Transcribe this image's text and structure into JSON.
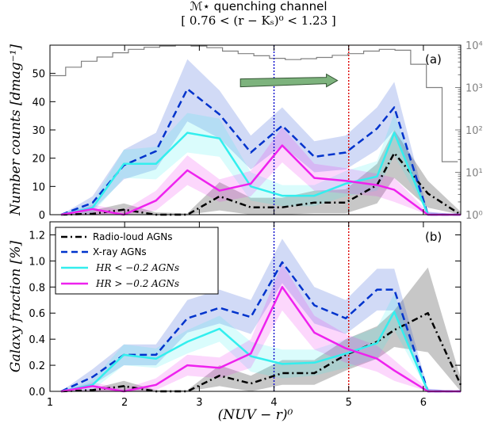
{
  "chart_data": {
    "type": "line",
    "title": "ℳ⋆ quenching channel",
    "subtitle": "[ 0.76 < (r − Kₛ)⁰ < 1.23 ]",
    "xlabel": "(NUV − r)⁰",
    "xlim": [
      1,
      6.5
    ],
    "x_ticks": [
      "1",
      "2",
      "3",
      "4",
      "5",
      "6"
    ],
    "x": [
      1.15,
      1.57,
      1.99,
      2.42,
      2.84,
      3.27,
      3.69,
      4.11,
      4.54,
      4.96,
      5.38,
      5.61,
      6.06,
      6.5
    ],
    "vlines": [
      {
        "x": 4.0,
        "color": "#0000cc"
      },
      {
        "x": 5.0,
        "color": "#dd0000"
      }
    ],
    "legend": {
      "position": "top-left of panel b",
      "entries": [
        "Radio-loud AGNs",
        "X-ray AGNs",
        "HR < −0.2 AGNs",
        "HR > −0.2 AGNs"
      ]
    },
    "panels": [
      {
        "label": "(a)",
        "ylabel": "Number counts [dmag⁻¹]",
        "ylim": [
          0,
          60
        ],
        "y_ticks": [
          "0",
          "10",
          "20",
          "30",
          "40",
          "50"
        ],
        "y2_ticks": [
          "10⁰",
          "10¹",
          "10²",
          "10³",
          "10⁴"
        ],
        "y2_range_log": [
          0,
          4
        ],
        "arrow": {
          "x_from": 3.55,
          "x_to": 4.85,
          "y": 47.5,
          "color": "#7db37d"
        },
        "histogram": {
          "name": "all galaxies (right axis, log scale)",
          "edges": [
            1.0,
            1.21,
            1.42,
            1.63,
            1.84,
            2.05,
            2.26,
            2.47,
            2.68,
            2.89,
            3.1,
            3.31,
            3.52,
            3.73,
            3.94,
            4.15,
            4.36,
            4.57,
            4.78,
            4.99,
            5.2,
            5.41,
            5.62,
            5.83,
            6.04,
            6.25,
            6.46
          ],
          "log_counts": [
            3.28,
            3.48,
            3.62,
            3.72,
            3.82,
            3.9,
            3.95,
            3.98,
            4.0,
            3.98,
            3.94,
            3.86,
            3.8,
            3.75,
            3.69,
            3.66,
            3.68,
            3.71,
            3.76,
            3.8,
            3.86,
            3.9,
            3.88,
            3.55,
            3.0,
            1.25
          ]
        },
        "series": [
          {
            "name": "Radio-loud AGNs",
            "color": "#000000",
            "style": "dashdot",
            "values": [
              0,
              0.3,
              1.8,
              0,
              0,
              6.5,
              2.6,
              2.6,
              4.3,
              4.3,
              10.5,
              21.8,
              7.5,
              0
            ],
            "band_lo": [
              0,
              0,
              0,
              0,
              0,
              1.5,
              0,
              0,
              0.5,
              0.5,
              4,
              13,
              2.5,
              0
            ],
            "band_hi": [
              0,
              1.5,
              4,
              0.8,
              0.5,
              11.5,
              6,
              6,
              8.5,
              9,
              18,
              30,
              12,
              1
            ]
          },
          {
            "name": "X-ray AGNs",
            "color": "#0033cc",
            "style": "dashed",
            "values": [
              0,
              4.2,
              17.5,
              22.5,
              44.5,
              35.5,
              22,
              31.5,
              20.5,
              22,
              30.5,
              38,
              0,
              0
            ],
            "band_lo": [
              0,
              1.5,
              12.5,
              16,
              33,
              27,
              16,
              24.5,
              15,
              16,
              23,
              30,
              0,
              0
            ],
            "band_hi": [
              0,
              6.5,
              23,
              29,
              55,
              44,
              28,
              38,
              26,
              28,
              38,
              47,
              1,
              0
            ]
          },
          {
            "name": "HR < −0.2 AGNs",
            "color": "#33eeee",
            "style": "solid",
            "values": [
              0,
              2.5,
              18,
              18,
              29,
              27,
              10,
              6.7,
              6.7,
              11,
              13.5,
              29,
              0,
              0
            ],
            "band_lo": [
              0,
              0.5,
              13,
              12.5,
              22,
              20.5,
              5,
              3,
              3,
              6.5,
              8.5,
              21,
              0,
              0
            ],
            "band_hi": [
              0,
              4.5,
              23,
              24,
              36,
              34,
              15,
              10.5,
              10.5,
              15.5,
              19,
              36,
              1,
              0
            ]
          },
          {
            "name": "HR > −0.2 AGNs",
            "color": "#ee22ee",
            "style": "solid",
            "values": [
              0,
              2,
              0,
              5,
              15.7,
              8.5,
              11,
              24.5,
              13,
              12,
              10.5,
              8.8,
              0,
              0
            ],
            "band_lo": [
              0,
              0,
              0,
              1.5,
              10.5,
              4.5,
              6.5,
              18.5,
              8.5,
              7.5,
              6.5,
              4.5,
              0,
              0
            ],
            "band_hi": [
              0,
              3.5,
              1.5,
              8.5,
              21,
              12.5,
              15.5,
              31,
              18,
              16.5,
              14.5,
              13,
              1,
              0
            ]
          }
        ]
      },
      {
        "label": "(b)",
        "ylabel": "Galaxy fraction [%]",
        "ylim": [
          0,
          1.3
        ],
        "y_ticks": [
          "0.0",
          "0.2",
          "0.4",
          "0.6",
          "0.8",
          "1.0",
          "1.2"
        ],
        "series": [
          {
            "name": "Radio-loud AGNs",
            "color": "#000000",
            "style": "dashdot",
            "values": [
              0,
              0.01,
              0.04,
              0,
              0,
              0.12,
              0.06,
              0.14,
              0.14,
              0.28,
              0.38,
              0.47,
              0.6,
              0.05
            ],
            "band_lo": [
              0,
              0,
              0,
              0,
              0,
              0.04,
              0,
              0.05,
              0.05,
              0.16,
              0.25,
              0.34,
              0.3,
              0
            ],
            "band_hi": [
              0,
              0.02,
              0.08,
              0.01,
              0.01,
              0.2,
              0.12,
              0.24,
              0.24,
              0.4,
              0.5,
              0.62,
              0.95,
              0.1
            ]
          },
          {
            "name": "X-ray AGNs",
            "color": "#0033cc",
            "style": "dashed",
            "values": [
              0,
              0.11,
              0.28,
              0.28,
              0.56,
              0.64,
              0.57,
              0.99,
              0.66,
              0.56,
              0.78,
              0.78,
              0,
              0
            ],
            "band_lo": [
              0,
              0.05,
              0.2,
              0.2,
              0.45,
              0.52,
              0.44,
              0.83,
              0.52,
              0.44,
              0.62,
              0.62,
              0,
              0
            ],
            "band_hi": [
              0,
              0.17,
              0.36,
              0.36,
              0.7,
              0.78,
              0.7,
              1.17,
              0.8,
              0.7,
              0.94,
              0.94,
              0.02,
              0
            ]
          },
          {
            "name": "HR < −0.2 AGNs",
            "color": "#33eeee",
            "style": "solid",
            "values": [
              0,
              0.05,
              0.28,
              0.25,
              0.38,
              0.48,
              0.27,
              0.21,
              0.22,
              0.29,
              0.37,
              0.61,
              0,
              0
            ],
            "band_lo": [
              0,
              0.01,
              0.2,
              0.18,
              0.29,
              0.38,
              0.15,
              0.1,
              0.12,
              0.18,
              0.25,
              0.47,
              0,
              0
            ],
            "band_hi": [
              0,
              0.09,
              0.36,
              0.33,
              0.47,
              0.58,
              0.38,
              0.32,
              0.32,
              0.4,
              0.49,
              0.75,
              0.02,
              0
            ]
          },
          {
            "name": "HR > −0.2 AGNs",
            "color": "#ee22ee",
            "style": "solid",
            "values": [
              0,
              0.04,
              0,
              0.05,
              0.2,
              0.18,
              0.29,
              0.8,
              0.45,
              0.33,
              0.25,
              0.16,
              0,
              0
            ],
            "band_lo": [
              0,
              0,
              0,
              0.01,
              0.12,
              0.1,
              0.18,
              0.62,
              0.32,
              0.22,
              0.15,
              0.08,
              0,
              0
            ],
            "band_hi": [
              0,
              0.07,
              0.02,
              0.1,
              0.28,
              0.26,
              0.4,
              0.98,
              0.58,
              0.44,
              0.35,
              0.24,
              0.02,
              0
            ]
          }
        ]
      }
    ]
  }
}
